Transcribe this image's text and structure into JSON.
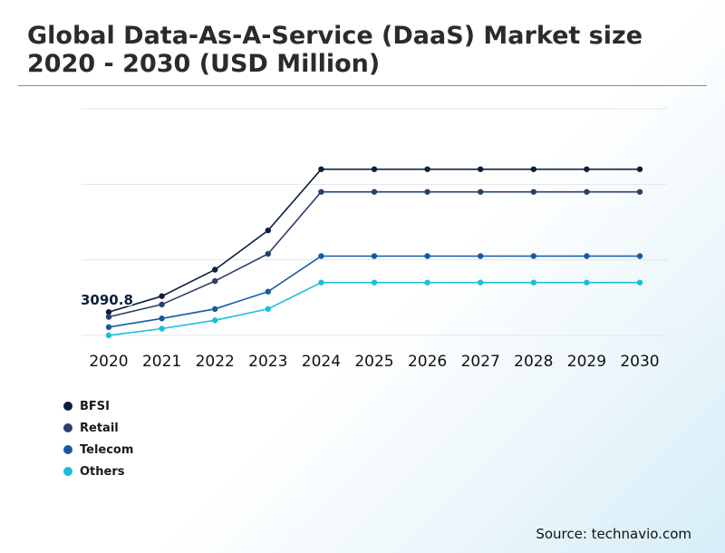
{
  "chart_data": {
    "type": "line",
    "title": "Global Data-As-A-Service (DaaS) Market size 2020 - 2030 (USD Million)",
    "categories": [
      "2020",
      "2021",
      "2022",
      "2023",
      "2024",
      "2025",
      "2026",
      "2027",
      "2028",
      "2029",
      "2030"
    ],
    "ylim": [
      0,
      30000
    ],
    "grid": true,
    "xlabel": "",
    "ylabel": "",
    "series": [
      {
        "name": "BFSI",
        "color": "#0b1f3f",
        "values": [
          3090.8,
          5200,
          8700,
          13900,
          22000,
          22000,
          22000,
          22000,
          22000,
          22000,
          22000
        ]
      },
      {
        "name": "Retail",
        "color": "#2a3f6e",
        "values": [
          2450,
          4100,
          7200,
          10800,
          19000,
          19000,
          19000,
          19000,
          19000,
          19000,
          19000
        ]
      },
      {
        "name": "Telecom",
        "color": "#1659a3",
        "values": [
          1100,
          2250,
          3500,
          5800,
          10500,
          10500,
          10500,
          10500,
          10500,
          10500,
          10500
        ]
      },
      {
        "name": "Others",
        "color": "#19c0dc",
        "values": [
          0,
          900,
          2000,
          3500,
          7000,
          7000,
          7000,
          7000,
          7000,
          7000,
          7000
        ]
      }
    ],
    "annotations": [
      {
        "text": "3090.8",
        "series": "BFSI",
        "category": "2020"
      }
    ]
  },
  "source": "Source: technavio.com"
}
